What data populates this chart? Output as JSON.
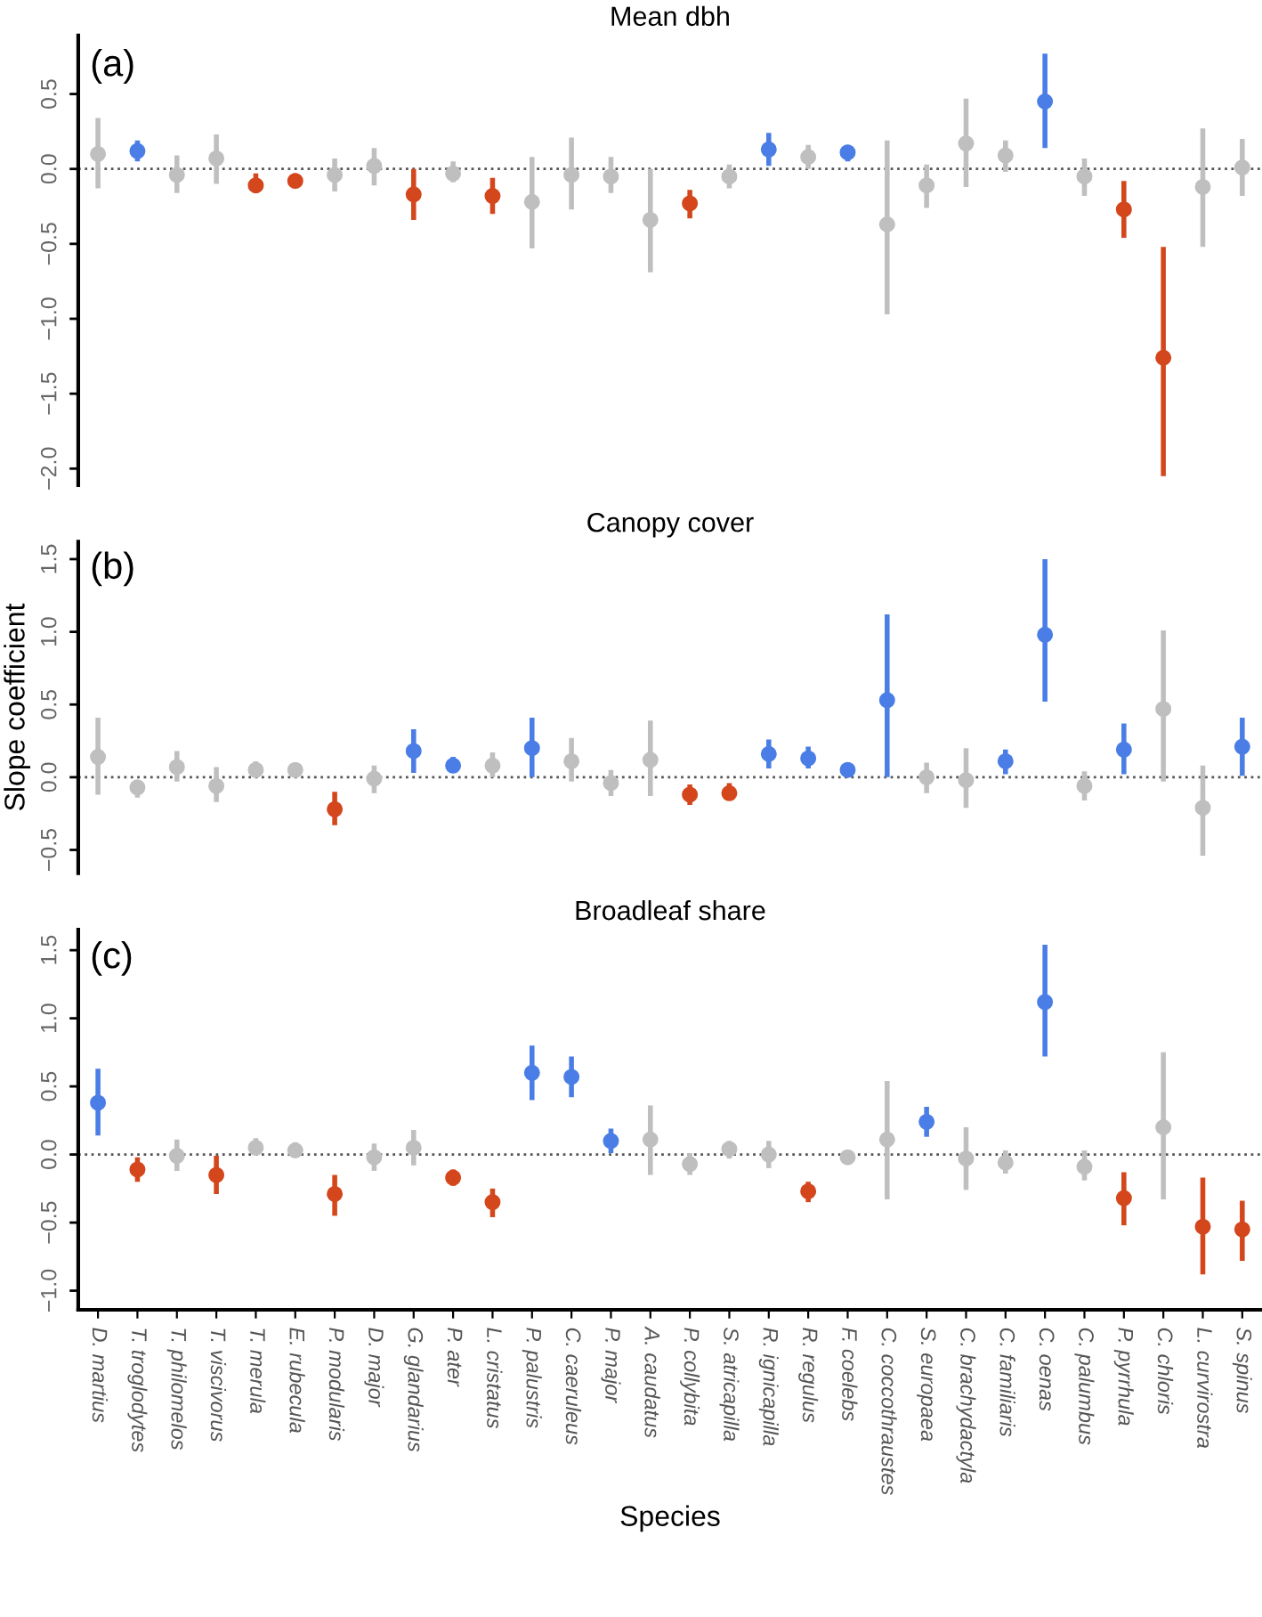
{
  "chart_data": [
    {
      "type": "scatter",
      "title": "Mean dbh",
      "annotations": [
        "(a)"
      ],
      "categories": [
        null,
        null,
        null,
        null,
        null,
        null,
        null,
        null,
        null,
        null,
        null,
        null,
        null,
        null,
        null,
        null,
        null,
        null,
        null,
        null,
        null,
        null,
        null,
        null,
        null,
        null,
        null,
        null,
        null,
        null
      ],
      "ylim": [
        -2.11,
        0.89
      ],
      "yticks": [
        {
          "value": -2.0,
          "label": "−2.0"
        },
        {
          "value": -1.5,
          "label": "−1.5"
        },
        {
          "value": -1.0,
          "label": "−1.0"
        },
        {
          "value": -0.5,
          "label": "−0.5"
        },
        {
          "value": 0.0,
          "label": "0.0"
        },
        {
          "value": 0.5,
          "label": "0.5"
        }
      ],
      "tick_labels": "y",
      "grid": false,
      "legend": false,
      "marker": "circle",
      "ref_lines": [
        {
          "axis": "y",
          "value": 0,
          "line_style": "dotted",
          "color": "#555555"
        }
      ],
      "series": [
        {
          "color": "#bfbfbf",
          "values": [
            0.1,
            null,
            -0.04,
            0.07,
            null,
            null,
            -0.04,
            0.02,
            null,
            -0.03,
            null,
            -0.22,
            -0.04,
            -0.05,
            -0.34,
            null,
            -0.05,
            null,
            0.08,
            null,
            -0.37,
            -0.11,
            0.17,
            0.09,
            null,
            -0.05,
            null,
            null,
            -0.12,
            0.01
          ],
          "errors": [
            [
              -0.13,
              0.34
            ],
            null,
            [
              -0.16,
              0.09
            ],
            [
              -0.1,
              0.23
            ],
            null,
            null,
            [
              -0.15,
              0.07
            ],
            [
              -0.11,
              0.14
            ],
            null,
            [
              -0.09,
              0.05
            ],
            null,
            [
              -0.53,
              0.08
            ],
            [
              -0.27,
              0.21
            ],
            [
              -0.16,
              0.08
            ],
            [
              -0.69,
              0.0
            ],
            null,
            [
              -0.13,
              0.03
            ],
            null,
            [
              0.0,
              0.16
            ],
            null,
            [
              -0.97,
              0.19
            ],
            [
              -0.26,
              0.03
            ],
            [
              -0.12,
              0.47
            ],
            [
              -0.02,
              0.19
            ],
            null,
            [
              -0.18,
              0.07
            ],
            null,
            null,
            [
              -0.52,
              0.27
            ],
            [
              -0.18,
              0.2
            ]
          ]
        },
        {
          "color": "#4a7ee6",
          "values": [
            null,
            0.12,
            null,
            null,
            null,
            null,
            null,
            null,
            null,
            null,
            null,
            null,
            null,
            null,
            null,
            null,
            null,
            0.13,
            null,
            0.11,
            null,
            null,
            null,
            null,
            0.45,
            null,
            null,
            null,
            null,
            null
          ],
          "errors": [
            null,
            [
              0.05,
              0.19
            ],
            null,
            null,
            null,
            null,
            null,
            null,
            null,
            null,
            null,
            null,
            null,
            null,
            null,
            null,
            null,
            [
              0.02,
              0.24
            ],
            null,
            [
              0.05,
              0.16
            ],
            null,
            null,
            null,
            null,
            [
              0.14,
              0.77
            ],
            null,
            null,
            null,
            null,
            null
          ]
        },
        {
          "color": "#d4461c",
          "values": [
            null,
            null,
            null,
            null,
            -0.11,
            -0.08,
            null,
            null,
            -0.17,
            null,
            -0.18,
            null,
            null,
            null,
            null,
            -0.23,
            null,
            null,
            null,
            null,
            null,
            null,
            null,
            null,
            null,
            null,
            -0.27,
            -1.26,
            null,
            null
          ],
          "errors": [
            null,
            null,
            null,
            null,
            [
              -0.16,
              -0.03
            ],
            [
              -0.12,
              -0.03
            ],
            null,
            null,
            [
              -0.34,
              0.0
            ],
            null,
            [
              -0.3,
              -0.06
            ],
            null,
            null,
            null,
            null,
            [
              -0.33,
              -0.14
            ],
            null,
            null,
            null,
            null,
            null,
            null,
            null,
            null,
            null,
            null,
            [
              -0.46,
              -0.08
            ],
            [
              -2.05,
              -0.52
            ],
            null,
            null
          ]
        }
      ]
    },
    {
      "type": "scatter",
      "title": "Canopy cover",
      "ylabel": "Slope coefficient",
      "annotations": [
        "(b)"
      ],
      "categories": [
        null,
        null,
        null,
        null,
        null,
        null,
        null,
        null,
        null,
        null,
        null,
        null,
        null,
        null,
        null,
        null,
        null,
        null,
        null,
        null,
        null,
        null,
        null,
        null,
        null,
        null,
        null,
        null,
        null,
        null
      ],
      "ylim": [
        -0.66,
        1.62
      ],
      "yticks": [
        {
          "value": -0.5,
          "label": "−0.5"
        },
        {
          "value": 0.0,
          "label": "0.0"
        },
        {
          "value": 0.5,
          "label": "0.5"
        },
        {
          "value": 1.0,
          "label": "1.0"
        },
        {
          "value": 1.5,
          "label": "1.5"
        }
      ],
      "tick_labels": "y",
      "grid": false,
      "legend": false,
      "marker": "circle",
      "ref_lines": [
        {
          "axis": "y",
          "value": 0,
          "line_style": "dotted",
          "color": "#555555"
        }
      ],
      "series": [
        {
          "color": "#bfbfbf",
          "values": [
            0.14,
            -0.07,
            0.07,
            -0.06,
            0.05,
            0.05,
            null,
            -0.01,
            null,
            null,
            0.08,
            null,
            0.11,
            -0.04,
            0.12,
            null,
            null,
            null,
            null,
            null,
            null,
            0.0,
            -0.02,
            null,
            null,
            -0.06,
            null,
            0.47,
            -0.21,
            null
          ],
          "errors": [
            [
              -0.12,
              0.41
            ],
            [
              -0.14,
              -0.02
            ],
            [
              -0.03,
              0.18
            ],
            [
              -0.17,
              0.07
            ],
            [
              0.0,
              0.11
            ],
            [
              0.0,
              0.1
            ],
            null,
            [
              -0.11,
              0.08
            ],
            null,
            null,
            [
              0.0,
              0.17
            ],
            null,
            [
              -0.03,
              0.27
            ],
            [
              -0.13,
              0.05
            ],
            [
              -0.13,
              0.39
            ],
            null,
            null,
            null,
            null,
            null,
            null,
            [
              -0.11,
              0.1
            ],
            [
              -0.21,
              0.2
            ],
            null,
            null,
            [
              -0.16,
              0.04
            ],
            null,
            [
              -0.03,
              1.01
            ],
            [
              -0.54,
              0.08
            ],
            null
          ]
        },
        {
          "color": "#4a7ee6",
          "values": [
            null,
            null,
            null,
            null,
            null,
            null,
            null,
            null,
            0.18,
            0.08,
            null,
            0.2,
            null,
            null,
            null,
            null,
            null,
            0.16,
            0.13,
            0.05,
            0.53,
            null,
            null,
            0.11,
            0.98,
            null,
            0.19,
            null,
            null,
            0.21
          ],
          "errors": [
            null,
            null,
            null,
            null,
            null,
            null,
            null,
            null,
            [
              0.03,
              0.33
            ],
            [
              0.03,
              0.14
            ],
            null,
            [
              0.0,
              0.41
            ],
            null,
            null,
            null,
            null,
            null,
            [
              0.06,
              0.26
            ],
            [
              0.06,
              0.21
            ],
            [
              0.01,
              0.1
            ],
            [
              0.0,
              1.12
            ],
            null,
            null,
            [
              0.02,
              0.19
            ],
            [
              0.52,
              1.5
            ],
            null,
            [
              0.02,
              0.37
            ],
            null,
            null,
            [
              0.01,
              0.41
            ]
          ]
        },
        {
          "color": "#d4461c",
          "values": [
            null,
            null,
            null,
            null,
            null,
            null,
            -0.22,
            null,
            null,
            null,
            null,
            null,
            null,
            null,
            null,
            -0.12,
            -0.11,
            null,
            null,
            null,
            null,
            null,
            null,
            null,
            null,
            null,
            null,
            null,
            null,
            null
          ],
          "errors": [
            null,
            null,
            null,
            null,
            null,
            null,
            [
              -0.33,
              -0.1
            ],
            null,
            null,
            null,
            null,
            null,
            null,
            null,
            null,
            [
              -0.19,
              -0.05
            ],
            [
              -0.15,
              -0.04
            ],
            null,
            null,
            null,
            null,
            null,
            null,
            null,
            null,
            null,
            null,
            null,
            null,
            null
          ]
        }
      ]
    },
    {
      "type": "scatter",
      "title": "Broadleaf share",
      "xlabel": "Species",
      "annotations": [
        "(c)"
      ],
      "categories": [
        "D. martius",
        "T. troglodytes",
        "T. philomelos",
        "T. viscivorus",
        "T. merula",
        "E. rubecula",
        "P. modularis",
        "D. major",
        "G. glandarius",
        "P. ater",
        "L. cristatus",
        "P. palustris",
        "C. caeruleus",
        "P. major",
        "A. caudatus",
        "P. collybita",
        "S. atricapilla",
        "R. ignicapilla",
        "R. regulus",
        "F. coelebs",
        "C. coccothraustes",
        "S. europaea",
        "C. brachydactyla",
        "C. familiaris",
        "C. oenas",
        "C. palumbus",
        "P. pyrrhula",
        "C. chloris",
        "L. curvirostra",
        "S. spinus"
      ],
      "ylim": [
        -1.14,
        1.65
      ],
      "yticks": [
        {
          "value": -1.0,
          "label": "−1.0"
        },
        {
          "value": -0.5,
          "label": "−0.5"
        },
        {
          "value": 0.0,
          "label": "0.0"
        },
        {
          "value": 0.5,
          "label": "0.5"
        },
        {
          "value": 1.0,
          "label": "1.0"
        },
        {
          "value": 1.5,
          "label": "1.5"
        }
      ],
      "grid": false,
      "legend": false,
      "marker": "circle",
      "ref_lines": [
        {
          "axis": "y",
          "value": 0,
          "line_style": "dotted",
          "color": "#555555"
        }
      ],
      "series": [
        {
          "color": "#bfbfbf",
          "values": [
            null,
            null,
            -0.01,
            null,
            0.05,
            0.03,
            null,
            -0.02,
            0.05,
            null,
            null,
            null,
            null,
            null,
            0.11,
            -0.07,
            0.04,
            0.0,
            null,
            -0.02,
            0.11,
            null,
            -0.03,
            -0.06,
            null,
            -0.09,
            null,
            0.2,
            null,
            null
          ],
          "errors": [
            null,
            null,
            [
              -0.12,
              0.11
            ],
            null,
            [
              0.0,
              0.12
            ],
            [
              -0.02,
              0.09
            ],
            null,
            [
              -0.12,
              0.08
            ],
            [
              -0.08,
              0.18
            ],
            null,
            null,
            null,
            null,
            null,
            [
              -0.15,
              0.36
            ],
            [
              -0.15,
              0.01
            ],
            [
              -0.03,
              0.1
            ],
            [
              -0.1,
              0.1
            ],
            null,
            [
              -0.06,
              0.02
            ],
            [
              -0.33,
              0.54
            ],
            null,
            [
              -0.26,
              0.2
            ],
            [
              -0.14,
              0.03
            ],
            null,
            [
              -0.19,
              0.03
            ],
            null,
            [
              -0.33,
              0.75
            ],
            null,
            null
          ]
        },
        {
          "color": "#4a7ee6",
          "values": [
            0.38,
            null,
            null,
            null,
            null,
            null,
            null,
            null,
            null,
            null,
            null,
            0.6,
            0.57,
            0.1,
            null,
            null,
            null,
            null,
            null,
            null,
            null,
            0.24,
            null,
            null,
            1.12,
            null,
            null,
            null,
            null,
            null
          ],
          "errors": [
            [
              0.14,
              0.63
            ],
            null,
            null,
            null,
            null,
            null,
            null,
            null,
            null,
            null,
            null,
            [
              0.4,
              0.8
            ],
            [
              0.42,
              0.72
            ],
            [
              0.01,
              0.19
            ],
            null,
            null,
            null,
            null,
            null,
            null,
            null,
            [
              0.13,
              0.35
            ],
            null,
            null,
            [
              0.72,
              1.54
            ],
            null,
            null,
            null,
            null,
            null
          ]
        },
        {
          "color": "#d4461c",
          "values": [
            null,
            -0.11,
            null,
            -0.15,
            null,
            null,
            -0.29,
            null,
            null,
            -0.17,
            -0.35,
            null,
            null,
            null,
            null,
            null,
            null,
            null,
            -0.27,
            null,
            null,
            null,
            null,
            null,
            null,
            null,
            -0.32,
            null,
            -0.53,
            -0.55
          ],
          "errors": [
            null,
            [
              -0.2,
              -0.02
            ],
            null,
            [
              -0.29,
              -0.01
            ],
            null,
            null,
            [
              -0.45,
              -0.15
            ],
            null,
            null,
            [
              -0.23,
              -0.11
            ],
            [
              -0.46,
              -0.25
            ],
            null,
            null,
            null,
            null,
            null,
            null,
            null,
            [
              -0.35,
              -0.2
            ],
            null,
            null,
            null,
            null,
            null,
            null,
            null,
            [
              -0.52,
              -0.13
            ],
            null,
            [
              -0.88,
              -0.17
            ],
            [
              -0.78,
              -0.34
            ]
          ]
        }
      ]
    }
  ]
}
